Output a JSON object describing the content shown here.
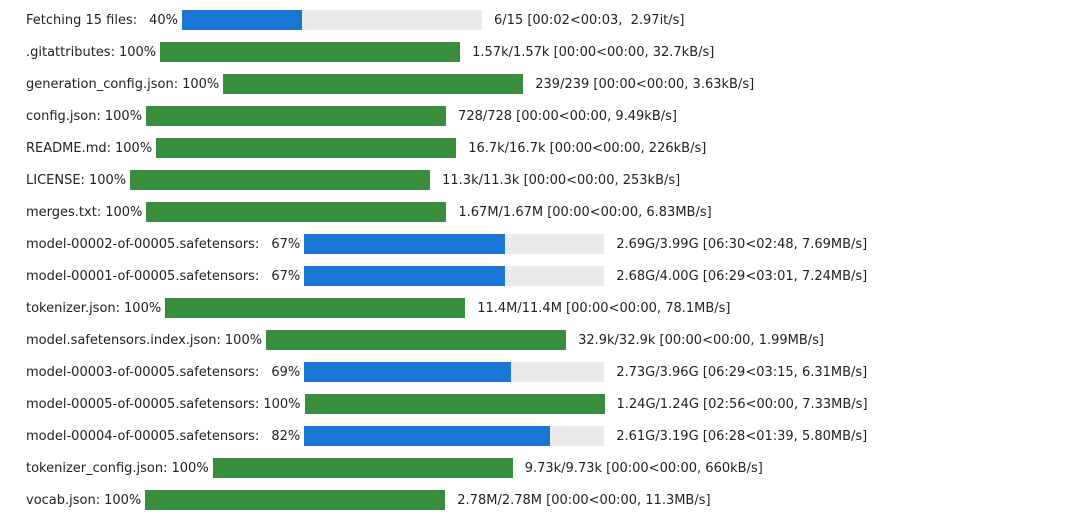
{
  "colors": {
    "in_progress": "#1976d2",
    "complete": "#388e3c",
    "track": "#ebebeb"
  },
  "progress": [
    {
      "label": "Fetching 15 files:",
      "percent": "40%",
      "fraction": 0.4,
      "stats": "6/15 [00:02<00:03,  2.97it/s]",
      "complete": false
    },
    {
      "label": ".gitattributes:",
      "percent": "100%",
      "fraction": 1.0,
      "stats": "1.57k/1.57k [00:00<00:00, 32.7kB/s]",
      "complete": true
    },
    {
      "label": "generation_config.json:",
      "percent": "100%",
      "fraction": 1.0,
      "stats": "239/239 [00:00<00:00, 3.63kB/s]",
      "complete": true
    },
    {
      "label": "config.json:",
      "percent": "100%",
      "fraction": 1.0,
      "stats": "728/728 [00:00<00:00, 9.49kB/s]",
      "complete": true
    },
    {
      "label": "README.md:",
      "percent": "100%",
      "fraction": 1.0,
      "stats": "16.7k/16.7k [00:00<00:00, 226kB/s]",
      "complete": true
    },
    {
      "label": "LICENSE:",
      "percent": "100%",
      "fraction": 1.0,
      "stats": "11.3k/11.3k [00:00<00:00, 253kB/s]",
      "complete": true
    },
    {
      "label": "merges.txt:",
      "percent": "100%",
      "fraction": 1.0,
      "stats": "1.67M/1.67M [00:00<00:00, 6.83MB/s]",
      "complete": true
    },
    {
      "label": "model-00002-of-00005.safetensors:",
      "percent": "67%",
      "fraction": 0.67,
      "stats": "2.69G/3.99G [06:30<02:48, 7.69MB/s]",
      "complete": false
    },
    {
      "label": "model-00001-of-00005.safetensors:",
      "percent": "67%",
      "fraction": 0.67,
      "stats": "2.68G/4.00G [06:29<03:01, 7.24MB/s]",
      "complete": false
    },
    {
      "label": "tokenizer.json:",
      "percent": "100%",
      "fraction": 1.0,
      "stats": "11.4M/11.4M [00:00<00:00, 78.1MB/s]",
      "complete": true
    },
    {
      "label": "model.safetensors.index.json:",
      "percent": "100%",
      "fraction": 1.0,
      "stats": "32.9k/32.9k [00:00<00:00, 1.99MB/s]",
      "complete": true
    },
    {
      "label": "model-00003-of-00005.safetensors:",
      "percent": "69%",
      "fraction": 0.69,
      "stats": "2.73G/3.96G [06:29<03:15, 6.31MB/s]",
      "complete": false
    },
    {
      "label": "model-00005-of-00005.safetensors:",
      "percent": "100%",
      "fraction": 1.0,
      "stats": "1.24G/1.24G [02:56<00:00, 7.33MB/s]",
      "complete": true
    },
    {
      "label": "model-00004-of-00005.safetensors:",
      "percent": "82%",
      "fraction": 0.82,
      "stats": "2.61G/3.19G [06:28<01:39, 5.80MB/s]",
      "complete": false
    },
    {
      "label": "tokenizer_config.json:",
      "percent": "100%",
      "fraction": 1.0,
      "stats": "9.73k/9.73k [00:00<00:00, 660kB/s]",
      "complete": true
    },
    {
      "label": "vocab.json:",
      "percent": "100%",
      "fraction": 1.0,
      "stats": "2.78M/2.78M [00:00<00:00, 11.3MB/s]",
      "complete": true
    }
  ]
}
